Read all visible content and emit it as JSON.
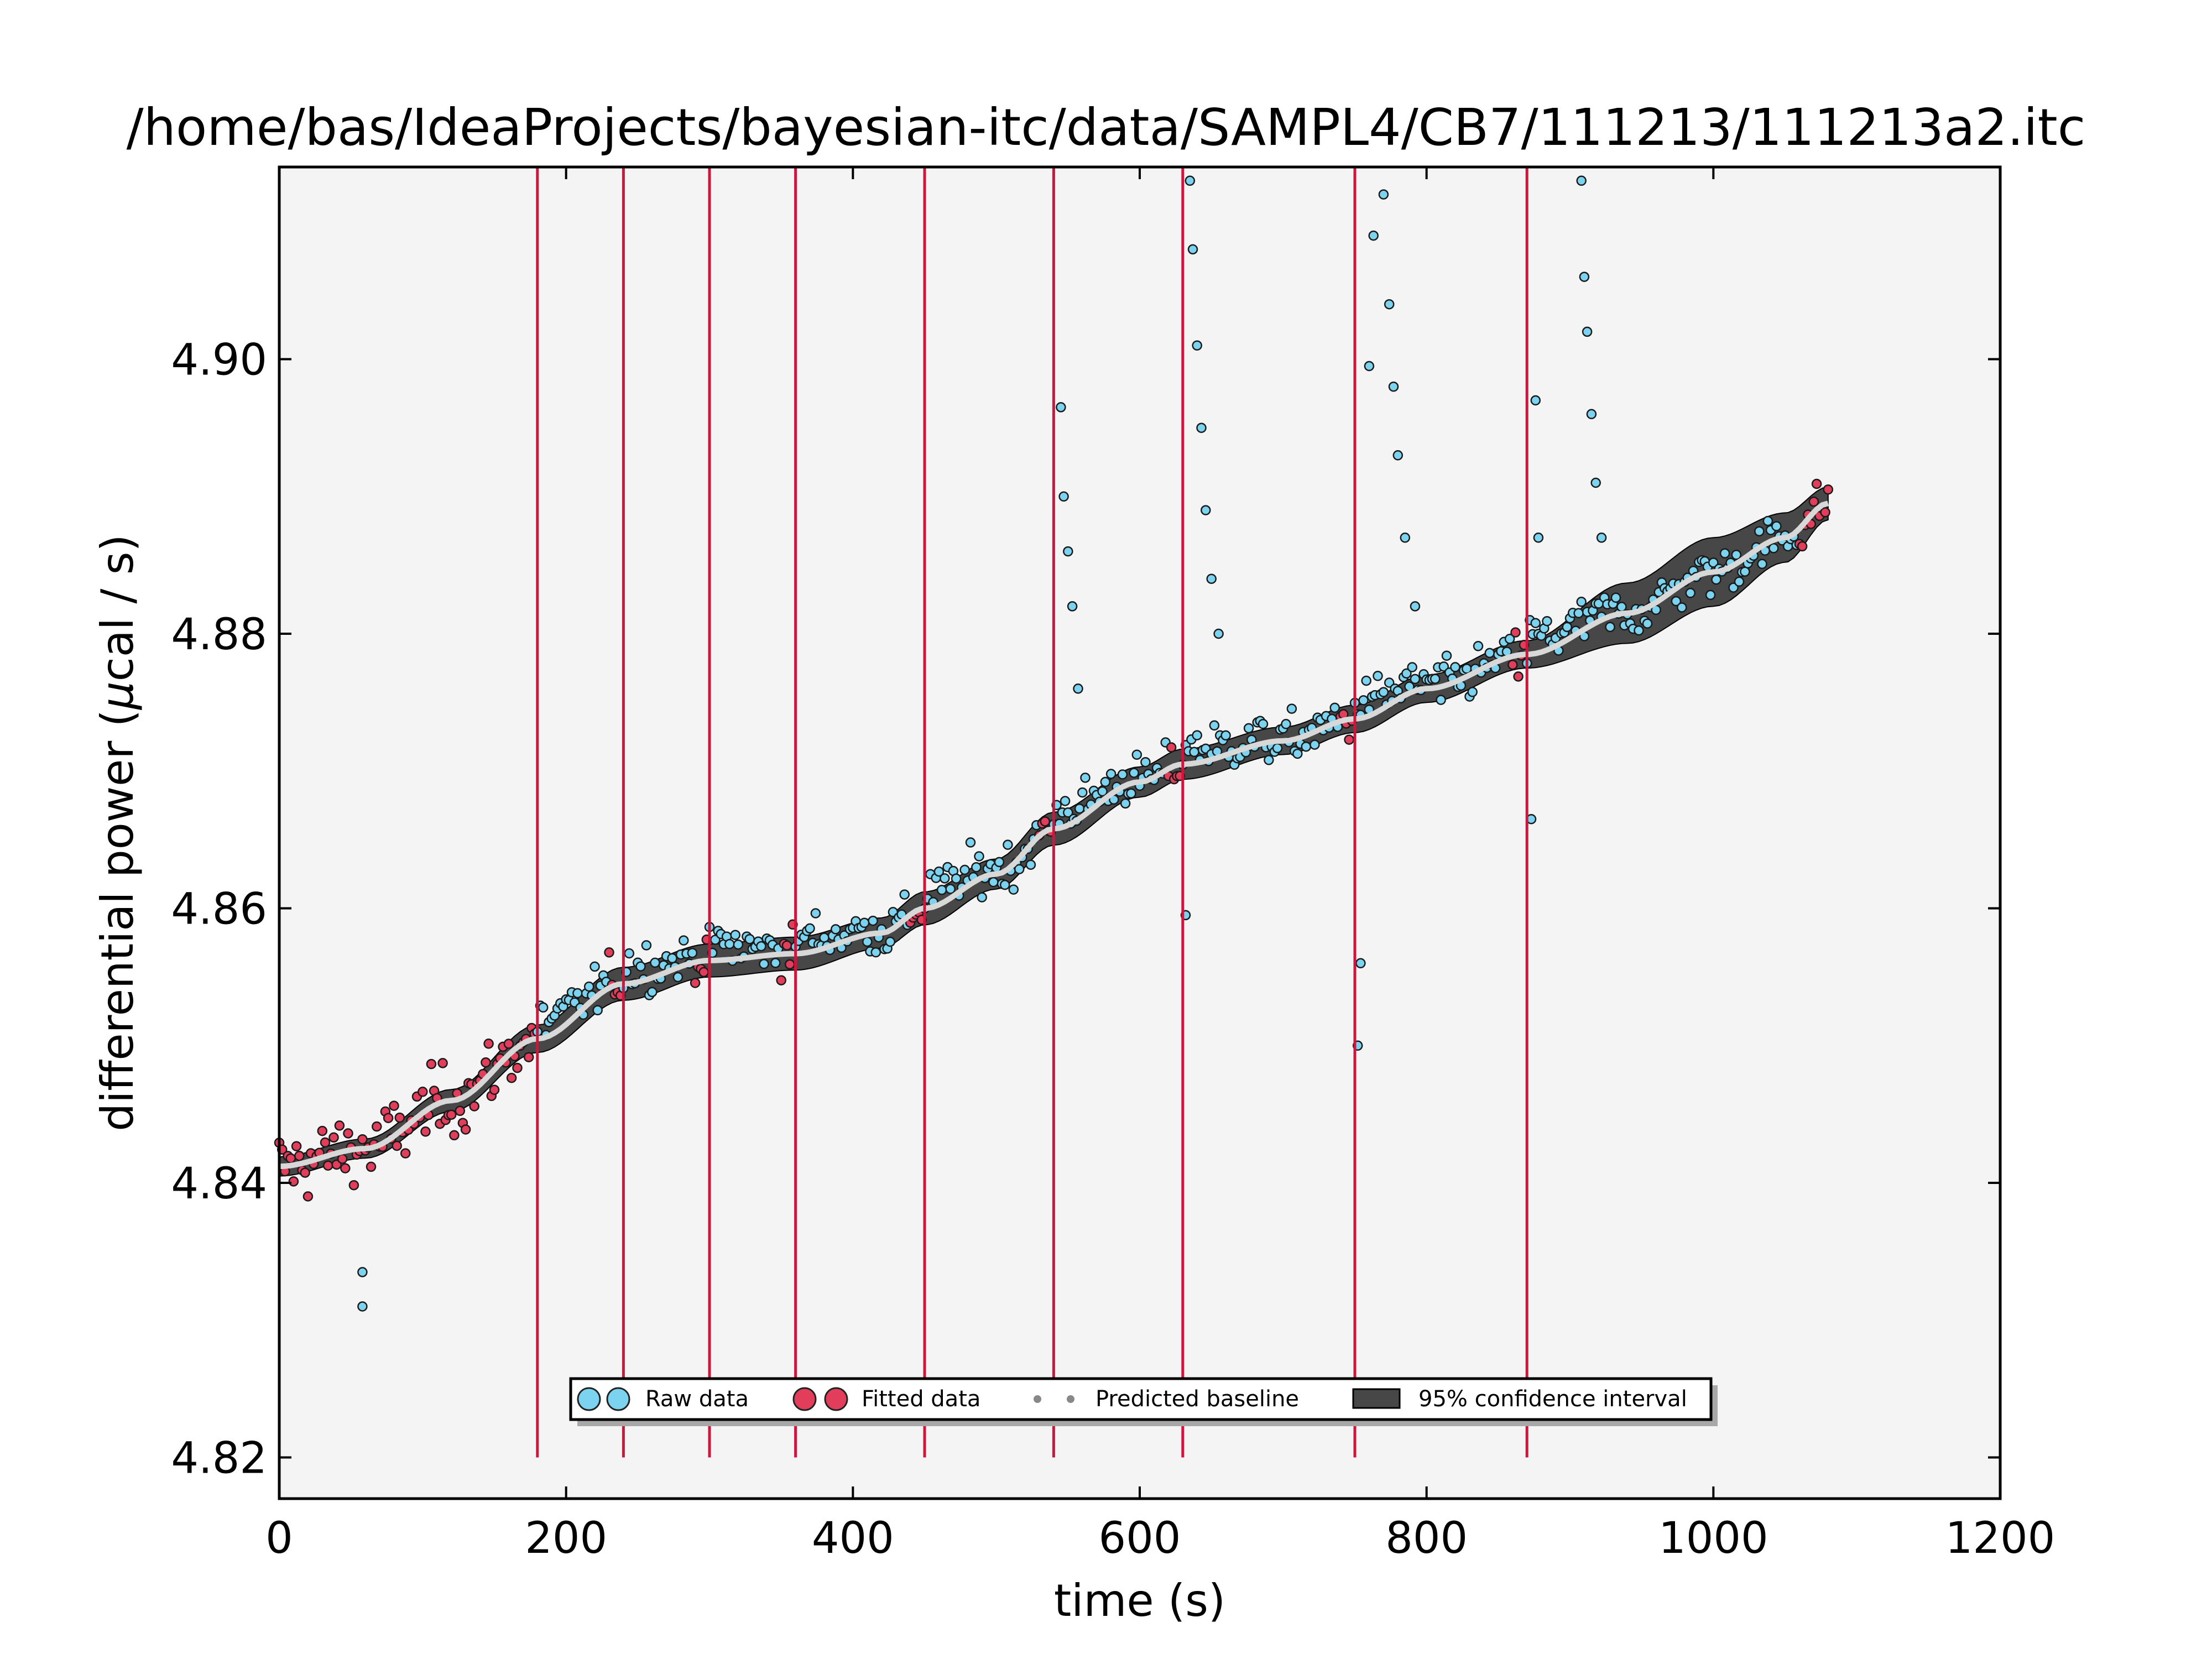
{
  "chart_data": {
    "type": "scatter",
    "title": "/home/bas/IdeaProjects/bayesian-itc/data/SAMPL4/CB7/111213/111213a2.itc",
    "xlabel": "time (s)",
    "ylabel_prefix": "differential power (",
    "ylabel_mu": "μ",
    "ylabel_suffix": "cal / s)",
    "xlim": [
      0,
      1200
    ],
    "ylim": [
      4.817,
      4.914
    ],
    "x_ticks": [
      {
        "value": 0,
        "label": "0"
      },
      {
        "value": 200,
        "label": "200"
      },
      {
        "value": 400,
        "label": "400"
      },
      {
        "value": 600,
        "label": "600"
      },
      {
        "value": 800,
        "label": "800"
      },
      {
        "value": 1000,
        "label": "1000"
      },
      {
        "value": 1200,
        "label": "1200"
      }
    ],
    "y_ticks": [
      {
        "value": 4.82,
        "label": "4.82"
      },
      {
        "value": 4.84,
        "label": "4.84"
      },
      {
        "value": 4.86,
        "label": "4.86"
      },
      {
        "value": 4.88,
        "label": "4.88"
      },
      {
        "value": 4.9,
        "label": "4.90"
      }
    ],
    "grid": false,
    "legend_placement": "bottom-center",
    "injection_times": [
      180,
      240,
      300,
      360,
      450,
      540,
      630,
      750,
      870
    ],
    "baseline": {
      "x": [
        0,
        60,
        120,
        180,
        240,
        300,
        360,
        420,
        450,
        500,
        540,
        600,
        630,
        700,
        750,
        800,
        870,
        940,
        1000,
        1050,
        1080
      ],
      "y": [
        4.8412,
        4.8425,
        4.846,
        4.8505,
        4.8545,
        4.8562,
        4.8567,
        4.8582,
        4.86,
        4.8625,
        4.8658,
        4.8692,
        4.8705,
        4.8722,
        4.8738,
        4.876,
        4.8785,
        4.8815,
        4.8845,
        4.887,
        4.8895
      ],
      "band_halfwidth": [
        0.0007,
        0.0007,
        0.0008,
        0.001,
        0.0012,
        0.0012,
        0.0012,
        0.0011,
        0.0012,
        0.0011,
        0.0012,
        0.0011,
        0.0011,
        0.001,
        0.001,
        0.001,
        0.001,
        0.0022,
        0.0025,
        0.0018,
        0.0012
      ]
    },
    "series": [
      {
        "name": "Raw data",
        "color": "#7bd3ef"
      },
      {
        "name": "Fitted data",
        "color": "#e23e5b"
      },
      {
        "name": "Predicted baseline",
        "color": "#d8d8d8"
      },
      {
        "name": "95% confidence interval",
        "color": "#474747"
      }
    ],
    "spikes": [
      {
        "x": 545,
        "y": 4.8965
      },
      {
        "x": 547,
        "y": 4.89
      },
      {
        "x": 550,
        "y": 4.886
      },
      {
        "x": 553,
        "y": 4.882
      },
      {
        "x": 557,
        "y": 4.876
      },
      {
        "x": 635,
        "y": 4.913
      },
      {
        "x": 637,
        "y": 4.908
      },
      {
        "x": 640,
        "y": 4.901
      },
      {
        "x": 643,
        "y": 4.895
      },
      {
        "x": 646,
        "y": 4.889
      },
      {
        "x": 650,
        "y": 4.884
      },
      {
        "x": 655,
        "y": 4.88
      },
      {
        "x": 760,
        "y": 4.8995
      },
      {
        "x": 763,
        "y": 4.909
      },
      {
        "x": 770,
        "y": 4.912
      },
      {
        "x": 774,
        "y": 4.904
      },
      {
        "x": 777,
        "y": 4.898
      },
      {
        "x": 780,
        "y": 4.893
      },
      {
        "x": 785,
        "y": 4.887
      },
      {
        "x": 792,
        "y": 4.882
      },
      {
        "x": 908,
        "y": 4.913
      },
      {
        "x": 910,
        "y": 4.906
      },
      {
        "x": 912,
        "y": 4.902
      },
      {
        "x": 915,
        "y": 4.896
      },
      {
        "x": 918,
        "y": 4.891
      },
      {
        "x": 922,
        "y": 4.887
      },
      {
        "x": 876,
        "y": 4.897
      },
      {
        "x": 878,
        "y": 4.887
      },
      {
        "x": 752,
        "y": 4.85
      },
      {
        "x": 754,
        "y": 4.856
      },
      {
        "x": 632,
        "y": 4.8595
      },
      {
        "x": 873,
        "y": 4.8665
      },
      {
        "x": 58,
        "y": 4.831
      },
      {
        "x": 58,
        "y": 4.8335
      }
    ],
    "legend": {
      "raw": "Raw data",
      "fitted": "Fitted data",
      "baseline": "Predicted baseline",
      "ci": "95% confidence interval"
    }
  }
}
